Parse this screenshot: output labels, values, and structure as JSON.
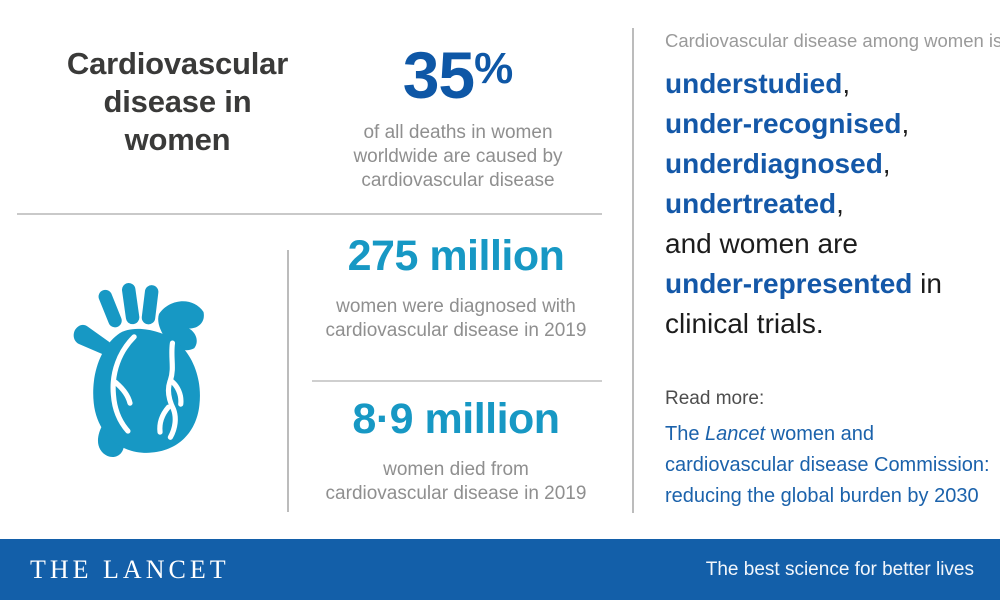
{
  "header": {
    "title": "Cardiovascular\ndisease in\nwomen"
  },
  "stats": [
    {
      "value": "35",
      "unit": "%",
      "caption": "of all deaths in women\nworldwide are caused by\ncardiovascular disease"
    },
    {
      "value": "275 million",
      "caption": "women were diagnosed with\ncardiovascular disease in 2019"
    },
    {
      "value": "8·9 million",
      "caption": "women died from\ncardiovascular disease in 2019"
    }
  ],
  "right_column": {
    "intro": "Cardiovascular disease among women is",
    "statement_lines": [
      [
        {
          "text": "understudied",
          "style": "em"
        },
        {
          "text": ",",
          "style": "plain"
        }
      ],
      [
        {
          "text": "under-recognised",
          "style": "em"
        },
        {
          "text": ",",
          "style": "plain"
        }
      ],
      [
        {
          "text": "underdiagnosed",
          "style": "em"
        },
        {
          "text": ",",
          "style": "plain"
        }
      ],
      [
        {
          "text": "undertreated",
          "style": "em"
        },
        {
          "text": ",",
          "style": "plain"
        }
      ],
      [
        {
          "text": "and women are",
          "style": "plain"
        }
      ],
      [
        {
          "text": "under-represented",
          "style": "em"
        },
        {
          "text": " in",
          "style": "plain"
        }
      ],
      [
        {
          "text": "clinical trials.",
          "style": "plain"
        }
      ]
    ],
    "read_more_label": "Read more:",
    "link_segments": [
      {
        "text": "The ",
        "style": "link"
      },
      {
        "text": "Lancet",
        "style": "link-italic"
      },
      {
        "text": " women and\ncardiovascular disease Commission:\nreducing the global burden by 2030",
        "style": "link"
      }
    ]
  },
  "footer": {
    "brand": "THE LANCET",
    "tagline": "The best science for better lives"
  },
  "icons": {
    "heart": "anatomical-heart-icon"
  },
  "colors": {
    "brand_blue": "#0e57a6",
    "emphasis_blue": "#1458a8",
    "link_blue": "#1b62ab",
    "accent_cyan": "#1798c4",
    "footer_blue": "#135fa9",
    "title_dark": "#3a3a39",
    "caption_gray": "#8f8f8f"
  }
}
